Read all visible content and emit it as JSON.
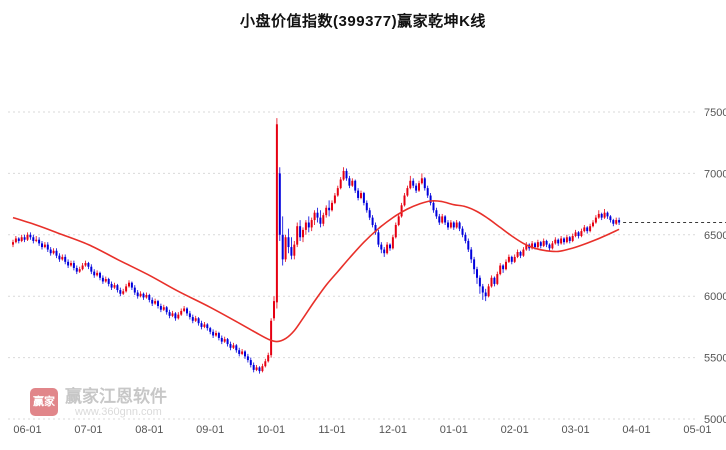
{
  "title": "小盘价值指数(399377)赢家乾坤K线",
  "watermark": {
    "logo_text": "赢家",
    "brand": "赢家江恩软件",
    "url": "www.360gnn.com"
  },
  "chart_data": {
    "type": "candlestick",
    "title": "小盘价值指数(399377)赢家乾坤K线",
    "y_ticks": [
      5000,
      5500,
      6000,
      6500,
      7000,
      7500
    ],
    "ylim": [
      5000,
      7500
    ],
    "grid": "horizontal-dotted",
    "x_ticks": [
      {
        "label": "06-01",
        "i": 5
      },
      {
        "label": "07-01",
        "i": 26
      },
      {
        "label": "08-01",
        "i": 47
      },
      {
        "label": "09-01",
        "i": 68
      },
      {
        "label": "10-01",
        "i": 89
      },
      {
        "label": "11-01",
        "i": 110
      },
      {
        "label": "12-01",
        "i": 131
      },
      {
        "label": "01-01",
        "i": 152
      },
      {
        "label": "02-01",
        "i": 173
      },
      {
        "label": "03-01",
        "i": 194
      },
      {
        "label": "04-01",
        "i": 215
      },
      {
        "label": "05-01",
        "i": 236
      }
    ],
    "last_price_line": 6600,
    "colors": {
      "up": "#e60012",
      "down": "#0000dc",
      "ma": "#e8302a",
      "grid": "#d9d9d9",
      "axis_text": "#555555",
      "last_price": "#3a3a3a",
      "title_text": "#111111"
    },
    "ma_points": [
      [
        0,
        6640
      ],
      [
        8,
        6580
      ],
      [
        16,
        6510
      ],
      [
        26,
        6420
      ],
      [
        36,
        6300
      ],
      [
        47,
        6170
      ],
      [
        57,
        6040
      ],
      [
        68,
        5910
      ],
      [
        78,
        5780
      ],
      [
        84,
        5700
      ],
      [
        88,
        5650
      ],
      [
        91,
        5630
      ],
      [
        94,
        5655
      ],
      [
        97,
        5720
      ],
      [
        100,
        5820
      ],
      [
        104,
        5960
      ],
      [
        108,
        6090
      ],
      [
        112,
        6200
      ],
      [
        116,
        6310
      ],
      [
        121,
        6440
      ],
      [
        126,
        6550
      ],
      [
        131,
        6640
      ],
      [
        136,
        6710
      ],
      [
        140,
        6750
      ],
      [
        144,
        6775
      ],
      [
        148,
        6770
      ],
      [
        152,
        6745
      ],
      [
        156,
        6730
      ],
      [
        160,
        6690
      ],
      [
        164,
        6630
      ],
      [
        168,
        6560
      ],
      [
        172,
        6490
      ],
      [
        176,
        6430
      ],
      [
        180,
        6390
      ],
      [
        184,
        6370
      ],
      [
        188,
        6365
      ],
      [
        192,
        6385
      ],
      [
        196,
        6415
      ],
      [
        200,
        6450
      ],
      [
        204,
        6490
      ],
      [
        209,
        6545
      ]
    ],
    "candles": [
      [
        6420,
        6460,
        6400,
        6440
      ],
      [
        6440,
        6490,
        6430,
        6470
      ],
      [
        6470,
        6480,
        6430,
        6450
      ],
      [
        6450,
        6500,
        6440,
        6480
      ],
      [
        6480,
        6500,
        6440,
        6460
      ],
      [
        6460,
        6520,
        6450,
        6500
      ],
      [
        6500,
        6520,
        6460,
        6480
      ],
      [
        6480,
        6500,
        6430,
        6450
      ],
      [
        6450,
        6490,
        6440,
        6460
      ],
      [
        6460,
        6480,
        6410,
        6430
      ],
      [
        6430,
        6450,
        6380,
        6400
      ],
      [
        6400,
        6440,
        6390,
        6420
      ],
      [
        6420,
        6440,
        6360,
        6380
      ],
      [
        6380,
        6400,
        6330,
        6350
      ],
      [
        6350,
        6390,
        6340,
        6370
      ],
      [
        6370,
        6390,
        6310,
        6330
      ],
      [
        6330,
        6350,
        6280,
        6300
      ],
      [
        6300,
        6340,
        6290,
        6320
      ],
      [
        6320,
        6340,
        6260,
        6280
      ],
      [
        6280,
        6300,
        6230,
        6250
      ],
      [
        6250,
        6290,
        6240,
        6270
      ],
      [
        6270,
        6290,
        6210,
        6230
      ],
      [
        6230,
        6250,
        6180,
        6200
      ],
      [
        6200,
        6240,
        6190,
        6220
      ],
      [
        6220,
        6270,
        6210,
        6250
      ],
      [
        6250,
        6290,
        6240,
        6270
      ],
      [
        6270,
        6280,
        6220,
        6240
      ],
      [
        6240,
        6260,
        6180,
        6200
      ],
      [
        6200,
        6220,
        6150,
        6170
      ],
      [
        6170,
        6210,
        6160,
        6190
      ],
      [
        6190,
        6200,
        6130,
        6150
      ],
      [
        6150,
        6170,
        6100,
        6120
      ],
      [
        6120,
        6160,
        6110,
        6140
      ],
      [
        6140,
        6150,
        6080,
        6100
      ],
      [
        6100,
        6120,
        6050,
        6070
      ],
      [
        6070,
        6110,
        6060,
        6090
      ],
      [
        6090,
        6100,
        6030,
        6050
      ],
      [
        6050,
        6070,
        6000,
        6020
      ],
      [
        6020,
        6060,
        6010,
        6040
      ],
      [
        6040,
        6100,
        6030,
        6080
      ],
      [
        6080,
        6130,
        6070,
        6110
      ],
      [
        6110,
        6120,
        6050,
        6070
      ],
      [
        6070,
        6090,
        6010,
        6030
      ],
      [
        6030,
        6050,
        5980,
        6000
      ],
      [
        6000,
        6040,
        5990,
        6020
      ],
      [
        6020,
        6030,
        5970,
        5990
      ],
      [
        5990,
        6030,
        5980,
        6010
      ],
      [
        6010,
        6020,
        5950,
        5970
      ],
      [
        5970,
        5990,
        5920,
        5940
      ],
      [
        5940,
        5980,
        5930,
        5960
      ],
      [
        5960,
        5970,
        5900,
        5920
      ],
      [
        5920,
        5940,
        5870,
        5890
      ],
      [
        5890,
        5930,
        5880,
        5910
      ],
      [
        5910,
        5920,
        5850,
        5870
      ],
      [
        5870,
        5890,
        5820,
        5840
      ],
      [
        5840,
        5880,
        5830,
        5860
      ],
      [
        5860,
        5870,
        5800,
        5820
      ],
      [
        5820,
        5870,
        5810,
        5850
      ],
      [
        5850,
        5900,
        5840,
        5880
      ],
      [
        5880,
        5920,
        5870,
        5900
      ],
      [
        5900,
        5910,
        5840,
        5860
      ],
      [
        5860,
        5880,
        5810,
        5830
      ],
      [
        5830,
        5850,
        5780,
        5800
      ],
      [
        5800,
        5840,
        5790,
        5820
      ],
      [
        5820,
        5830,
        5760,
        5780
      ],
      [
        5780,
        5800,
        5730,
        5750
      ],
      [
        5750,
        5790,
        5740,
        5770
      ],
      [
        5770,
        5780,
        5720,
        5740
      ],
      [
        5740,
        5750,
        5690,
        5710
      ],
      [
        5710,
        5730,
        5660,
        5680
      ],
      [
        5680,
        5720,
        5670,
        5700
      ],
      [
        5700,
        5710,
        5640,
        5660
      ],
      [
        5660,
        5680,
        5610,
        5630
      ],
      [
        5630,
        5670,
        5620,
        5650
      ],
      [
        5650,
        5660,
        5590,
        5610
      ],
      [
        5610,
        5630,
        5560,
        5580
      ],
      [
        5580,
        5620,
        5570,
        5600
      ],
      [
        5600,
        5610,
        5540,
        5560
      ],
      [
        5560,
        5580,
        5510,
        5530
      ],
      [
        5530,
        5570,
        5520,
        5550
      ],
      [
        5550,
        5560,
        5490,
        5510
      ],
      [
        5510,
        5530,
        5460,
        5480
      ],
      [
        5480,
        5500,
        5420,
        5440
      ],
      [
        5440,
        5460,
        5380,
        5400
      ],
      [
        5400,
        5440,
        5390,
        5420
      ],
      [
        5420,
        5430,
        5370,
        5390
      ],
      [
        5390,
        5450,
        5380,
        5430
      ],
      [
        5430,
        5490,
        5420,
        5470
      ],
      [
        5470,
        5540,
        5460,
        5520
      ],
      [
        5520,
        5820,
        5500,
        5800
      ],
      [
        5820,
        6000,
        5800,
        5960
      ],
      [
        5950,
        7450,
        5900,
        7400
      ],
      [
        7000,
        7050,
        6450,
        6500
      ],
      [
        6500,
        6650,
        6250,
        6300
      ],
      [
        6300,
        6500,
        6280,
        6480
      ],
      [
        6480,
        6550,
        6350,
        6400
      ],
      [
        6400,
        6480,
        6300,
        6330
      ],
      [
        6330,
        6450,
        6300,
        6420
      ],
      [
        6420,
        6600,
        6400,
        6570
      ],
      [
        6570,
        6620,
        6450,
        6480
      ],
      [
        6480,
        6560,
        6440,
        6540
      ],
      [
        6540,
        6620,
        6500,
        6600
      ],
      [
        6600,
        6650,
        6520,
        6560
      ],
      [
        6560,
        6640,
        6530,
        6620
      ],
      [
        6620,
        6700,
        6580,
        6680
      ],
      [
        6680,
        6720,
        6600,
        6640
      ],
      [
        6640,
        6700,
        6560,
        6590
      ],
      [
        6590,
        6680,
        6570,
        6660
      ],
      [
        6660,
        6740,
        6640,
        6720
      ],
      [
        6720,
        6780,
        6650,
        6700
      ],
      [
        6700,
        6780,
        6690,
        6760
      ],
      [
        6760,
        6840,
        6750,
        6820
      ],
      [
        6820,
        6900,
        6810,
        6880
      ],
      [
        6880,
        6970,
        6870,
        6950
      ],
      [
        6950,
        7050,
        6940,
        7020
      ],
      [
        7020,
        7040,
        6940,
        6960
      ],
      [
        6960,
        6980,
        6880,
        6900
      ],
      [
        6900,
        6960,
        6890,
        6940
      ],
      [
        6940,
        6950,
        6840,
        6860
      ],
      [
        6860,
        6880,
        6780,
        6800
      ],
      [
        6800,
        6860,
        6790,
        6840
      ],
      [
        6840,
        6850,
        6740,
        6760
      ],
      [
        6760,
        6780,
        6680,
        6700
      ],
      [
        6700,
        6720,
        6620,
        6640
      ],
      [
        6640,
        6660,
        6560,
        6580
      ],
      [
        6580,
        6600,
        6500,
        6520
      ],
      [
        6520,
        6540,
        6400,
        6420
      ],
      [
        6420,
        6440,
        6350,
        6380
      ],
      [
        6380,
        6400,
        6320,
        6350
      ],
      [
        6350,
        6440,
        6340,
        6420
      ],
      [
        6420,
        6430,
        6370,
        6390
      ],
      [
        6390,
        6500,
        6380,
        6480
      ],
      [
        6480,
        6600,
        6470,
        6580
      ],
      [
        6580,
        6670,
        6570,
        6650
      ],
      [
        6650,
        6760,
        6640,
        6740
      ],
      [
        6740,
        6840,
        6730,
        6820
      ],
      [
        6820,
        6900,
        6810,
        6880
      ],
      [
        6880,
        6980,
        6870,
        6940
      ],
      [
        6940,
        6960,
        6880,
        6900
      ],
      [
        6900,
        6920,
        6840,
        6860
      ],
      [
        6860,
        6940,
        6850,
        6920
      ],
      [
        6920,
        7000,
        6910,
        6960
      ],
      [
        6960,
        6970,
        6860,
        6880
      ],
      [
        6880,
        6900,
        6800,
        6820
      ],
      [
        6820,
        6840,
        6740,
        6760
      ],
      [
        6760,
        6780,
        6680,
        6700
      ],
      [
        6700,
        6720,
        6630,
        6650
      ],
      [
        6650,
        6670,
        6580,
        6600
      ],
      [
        6600,
        6670,
        6590,
        6650
      ],
      [
        6650,
        6660,
        6580,
        6600
      ],
      [
        6600,
        6620,
        6540,
        6560
      ],
      [
        6560,
        6620,
        6550,
        6600
      ],
      [
        6600,
        6610,
        6540,
        6560
      ],
      [
        6560,
        6620,
        6550,
        6600
      ],
      [
        6600,
        6610,
        6530,
        6550
      ],
      [
        6550,
        6570,
        6480,
        6500
      ],
      [
        6500,
        6520,
        6430,
        6450
      ],
      [
        6450,
        6470,
        6360,
        6380
      ],
      [
        6380,
        6400,
        6270,
        6300
      ],
      [
        6300,
        6320,
        6180,
        6220
      ],
      [
        6220,
        6240,
        6100,
        6150
      ],
      [
        6150,
        6170,
        6020,
        6080
      ],
      [
        6080,
        6100,
        5970,
        6030
      ],
      [
        6030,
        6060,
        5960,
        6000
      ],
      [
        6000,
        6100,
        5990,
        6080
      ],
      [
        6080,
        6170,
        6070,
        6150
      ],
      [
        6150,
        6160,
        6080,
        6100
      ],
      [
        6100,
        6200,
        6090,
        6180
      ],
      [
        6180,
        6270,
        6170,
        6250
      ],
      [
        6250,
        6260,
        6190,
        6220
      ],
      [
        6220,
        6300,
        6210,
        6280
      ],
      [
        6280,
        6340,
        6270,
        6320
      ],
      [
        6320,
        6330,
        6260,
        6280
      ],
      [
        6280,
        6340,
        6270,
        6320
      ],
      [
        6320,
        6380,
        6310,
        6360
      ],
      [
        6360,
        6370,
        6310,
        6330
      ],
      [
        6330,
        6400,
        6320,
        6380
      ],
      [
        6380,
        6440,
        6370,
        6420
      ],
      [
        6420,
        6430,
        6370,
        6390
      ],
      [
        6390,
        6450,
        6380,
        6430
      ],
      [
        6430,
        6440,
        6380,
        6400
      ],
      [
        6400,
        6460,
        6390,
        6440
      ],
      [
        6440,
        6450,
        6390,
        6410
      ],
      [
        6410,
        6470,
        6400,
        6450
      ],
      [
        6450,
        6460,
        6400,
        6420
      ],
      [
        6420,
        6430,
        6370,
        6390
      ],
      [
        6390,
        6450,
        6380,
        6430
      ],
      [
        6430,
        6480,
        6420,
        6460
      ],
      [
        6460,
        6470,
        6410,
        6430
      ],
      [
        6430,
        6490,
        6420,
        6470
      ],
      [
        6470,
        6480,
        6420,
        6440
      ],
      [
        6440,
        6500,
        6430,
        6480
      ],
      [
        6480,
        6490,
        6430,
        6450
      ],
      [
        6450,
        6510,
        6440,
        6490
      ],
      [
        6490,
        6540,
        6480,
        6520
      ],
      [
        6520,
        6530,
        6470,
        6490
      ],
      [
        6490,
        6550,
        6480,
        6530
      ],
      [
        6530,
        6580,
        6520,
        6560
      ],
      [
        6560,
        6570,
        6510,
        6530
      ],
      [
        6530,
        6590,
        6520,
        6570
      ],
      [
        6570,
        6620,
        6560,
        6600
      ],
      [
        6600,
        6660,
        6590,
        6640
      ],
      [
        6640,
        6700,
        6630,
        6670
      ],
      [
        6670,
        6680,
        6620,
        6640
      ],
      [
        6640,
        6710,
        6630,
        6680
      ],
      [
        6680,
        6690,
        6630,
        6650
      ],
      [
        6650,
        6660,
        6600,
        6620
      ],
      [
        6620,
        6630,
        6570,
        6590
      ],
      [
        6590,
        6640,
        6580,
        6620
      ],
      [
        6620,
        6640,
        6580,
        6600
      ]
    ]
  }
}
